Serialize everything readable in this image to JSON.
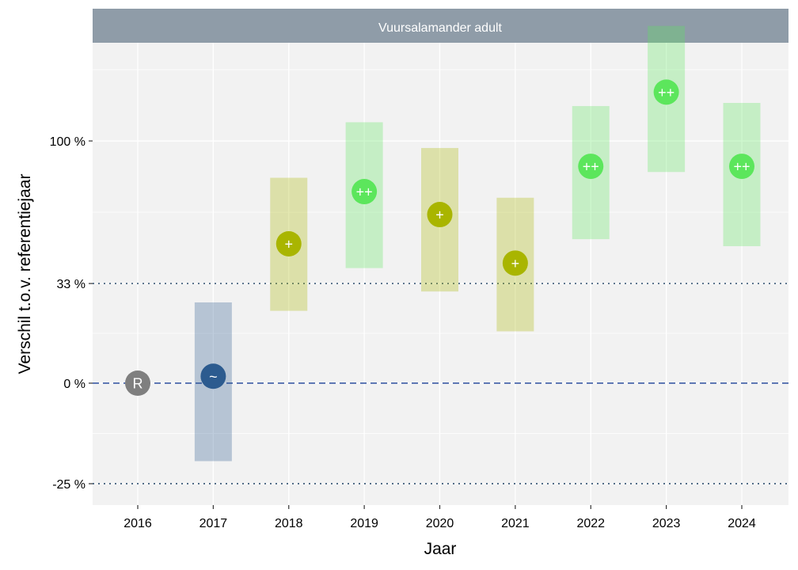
{
  "chart_data": {
    "type": "scatter",
    "panel_title": "Vuursalamander adult",
    "xlabel": "Jaar",
    "ylabel": "Verschil t.o.v. referentiejaar",
    "y_scale": "log(1+change)",
    "y_ticks": [
      {
        "value": -25,
        "label": "-25 %"
      },
      {
        "value": 0,
        "label": "0 %"
      },
      {
        "value": 33,
        "label": "33 %"
      },
      {
        "value": 100,
        "label": "100 %"
      }
    ],
    "reference_lines": [
      {
        "value": 0,
        "style": "dashed",
        "color": "#2c4f9e"
      },
      {
        "value": -25,
        "style": "dotted",
        "color": "#2f4f6f"
      },
      {
        "value": 33,
        "style": "dotted",
        "color": "#2f4f6f"
      }
    ],
    "grid": true,
    "points": [
      {
        "year": "2016",
        "estimate": 0,
        "lower": null,
        "upper": null,
        "label": "R",
        "color": "#7f7f7f"
      },
      {
        "year": "2017",
        "estimate": 2,
        "lower": -20,
        "upper": 26,
        "label": "~",
        "color": "#2c5b8f"
      },
      {
        "year": "2018",
        "estimate": 49,
        "lower": 23,
        "upper": 80,
        "label": "+",
        "color": "#a9b500"
      },
      {
        "year": "2019",
        "estimate": 73,
        "lower": 39,
        "upper": 111,
        "label": "++",
        "color": "#5ce65c"
      },
      {
        "year": "2020",
        "estimate": 62,
        "lower": 30,
        "upper": 96,
        "label": "+",
        "color": "#a9b500"
      },
      {
        "year": "2021",
        "estimate": 41,
        "lower": 16,
        "upper": 70,
        "label": "+",
        "color": "#a9b500"
      },
      {
        "year": "2022",
        "estimate": 86,
        "lower": 51,
        "upper": 121,
        "label": "++",
        "color": "#5ce65c"
      },
      {
        "year": "2023",
        "estimate": 130,
        "lower": 83,
        "upper": 178,
        "label": "++",
        "color": "#5ce65c"
      },
      {
        "year": "2024",
        "estimate": 86,
        "lower": 48,
        "upper": 123,
        "label": "++",
        "color": "#5ce65c"
      }
    ]
  }
}
